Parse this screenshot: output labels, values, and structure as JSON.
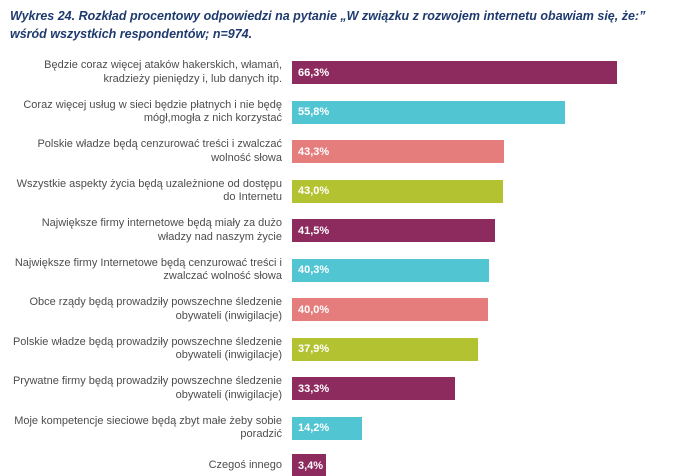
{
  "title": "Wykres 24. Rozkład procentowy odpowiedzi na pytanie „W związku z rozwojem internetu obawiam się, że:” wśród wszystkich respondentów; n=974.",
  "chart_data": {
    "type": "bar",
    "orientation": "horizontal",
    "title": "Wykres 24. Rozkład procentowy odpowiedzi na pytanie „W związku z rozwojem internetu obawiam się, że:” wśród wszystkich respondentów; n=974.",
    "n": 974,
    "categories": [
      "Będzie coraz więcej ataków hakerskich, włamań, kradzieży pieniędzy i, lub danych itp.",
      "Coraz więcej usług w sieci będzie płatnych i nie będę mógł,mogła z nich korzystać",
      "Polskie władze będą cenzurować treści i zwalczać wolność słowa",
      "Wszystkie aspekty życia będą uzależnione od dostępu do Internetu",
      "Największe firmy internetowe będą miały za dużo władzy nad naszym życie",
      "Największe firmy Internetowe będą cenzurować treści i zwalczać wolność słowa",
      "Obce rządy będą prowadziły powszechne śledzenie obywateli (inwigilacje)",
      "Polskie władze będą prowadziły powszechne śledzenie obywateli (inwigilacje)",
      "Prywatne firmy będą prowadziły powszechne śledzenie obywateli (inwigilacje)",
      "Moje kompetencje sieciowe będą zbyt małe żeby sobie poradzić",
      "Czegoś innego"
    ],
    "values": [
      66.3,
      55.8,
      43.3,
      43.0,
      41.5,
      40.3,
      40.0,
      37.9,
      33.3,
      14.2,
      3.4
    ],
    "value_labels": [
      "66,3%",
      "55,8%",
      "43,3%",
      "43,0%",
      "41,5%",
      "40,3%",
      "40,0%",
      "37,9%",
      "33,3%",
      "14,2%",
      "3,4%"
    ],
    "colors": [
      "#8d2a5e",
      "#52c5d3",
      "#e57d7d",
      "#b3c231",
      "#8d2a5e",
      "#52c5d3",
      "#e57d7d",
      "#b3c231",
      "#8d2a5e",
      "#52c5d3",
      "#8d2a5e"
    ],
    "xlabel": "",
    "ylabel": "",
    "xlim": [
      0,
      70
    ],
    "grid": false,
    "legend": false,
    "value_label_position": "inside-start",
    "title_color": "#1e3a6e"
  }
}
